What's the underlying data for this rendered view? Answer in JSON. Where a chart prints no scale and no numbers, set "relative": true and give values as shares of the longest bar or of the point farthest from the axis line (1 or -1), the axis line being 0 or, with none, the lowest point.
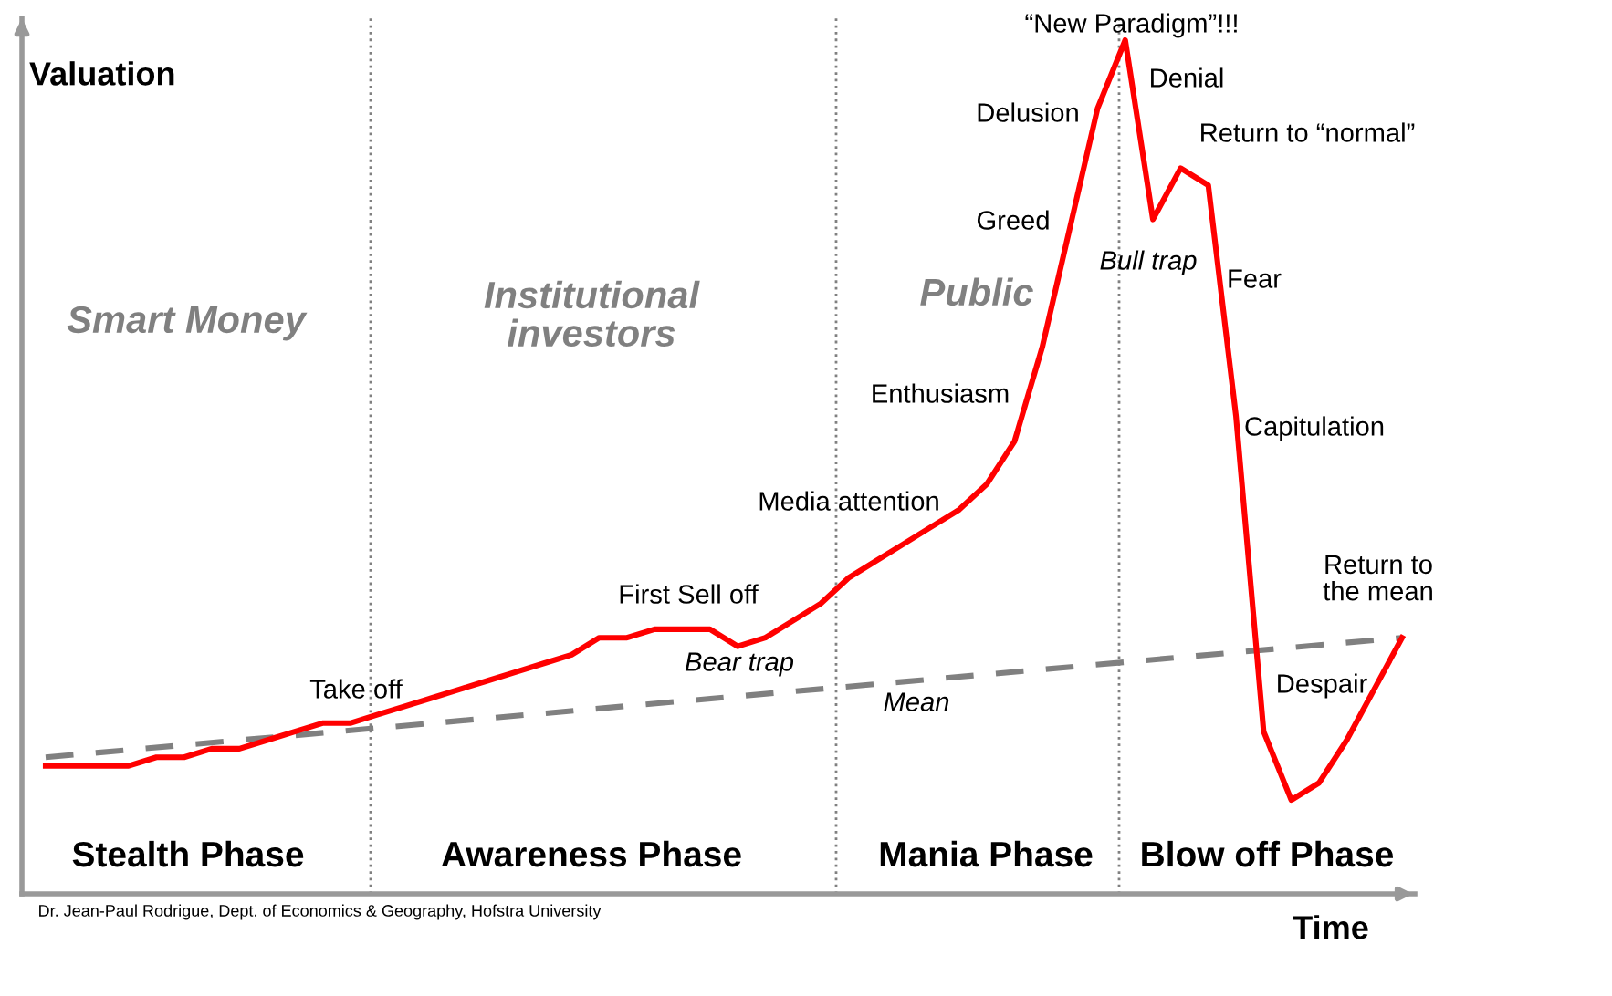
{
  "chart_data": {
    "type": "line",
    "relative": true,
    "xlabel": "Time",
    "ylabel": "Valuation",
    "categories": [
      null,
      null,
      null,
      null,
      null,
      null,
      null,
      null,
      null,
      null,
      null,
      null,
      null,
      null,
      null,
      null,
      null,
      null,
      null,
      null,
      null,
      null,
      null,
      null,
      null,
      null,
      null,
      null,
      null,
      null,
      null,
      null,
      null,
      null,
      null,
      null,
      null,
      null,
      null,
      null,
      null,
      null,
      null,
      null,
      null,
      null,
      null,
      null,
      null,
      null
    ],
    "series": [
      {
        "color": "#ff0000",
        "line_style": "solid",
        "values": [
          0.15,
          0.15,
          0.15,
          0.15,
          0.16,
          0.16,
          0.17,
          0.17,
          0.18,
          0.19,
          0.2,
          0.2,
          0.21,
          0.22,
          0.23,
          0.24,
          0.25,
          0.26,
          0.27,
          0.28,
          0.3,
          0.3,
          0.31,
          0.31,
          0.31,
          0.29,
          0.3,
          0.32,
          0.34,
          0.37,
          0.39,
          0.41,
          0.43,
          0.45,
          0.48,
          0.53,
          0.64,
          0.78,
          0.92,
          1.0,
          0.79,
          0.85,
          0.83,
          0.56,
          0.19,
          0.11,
          0.13,
          0.18,
          0.24,
          0.3
        ]
      },
      {
        "name": "Mean",
        "type": "line",
        "color": "#808080",
        "line_style": "dashed",
        "values": [
          0.16,
          null,
          null,
          null,
          null,
          null,
          null,
          null,
          null,
          null,
          null,
          null,
          null,
          null,
          null,
          null,
          null,
          null,
          null,
          null,
          null,
          null,
          null,
          null,
          null,
          null,
          null,
          null,
          null,
          null,
          null,
          null,
          null,
          null,
          null,
          null,
          null,
          null,
          null,
          null,
          null,
          null,
          null,
          null,
          null,
          null,
          null,
          null,
          null,
          0.3
        ]
      }
    ],
    "annotations": [
      "Smart Money",
      "Institutional\ninvestors",
      "Public",
      "Take off",
      "First Sell off",
      "Bear trap",
      "Media attention",
      "Enthusiasm",
      "Greed",
      "Delusion",
      "“New Paradigm”!!!",
      "Denial",
      "Return to “normal”",
      "Bull trap",
      "Fear",
      "Capitulation",
      "Return to\nthe mean",
      "Despair",
      "Stealth Phase",
      "Awareness Phase",
      "Mania Phase",
      "Blow off Phase",
      "Dr. Jean-Paul Rodrigue, Dept. of Economics & Geography, Hofstra University"
    ]
  }
}
